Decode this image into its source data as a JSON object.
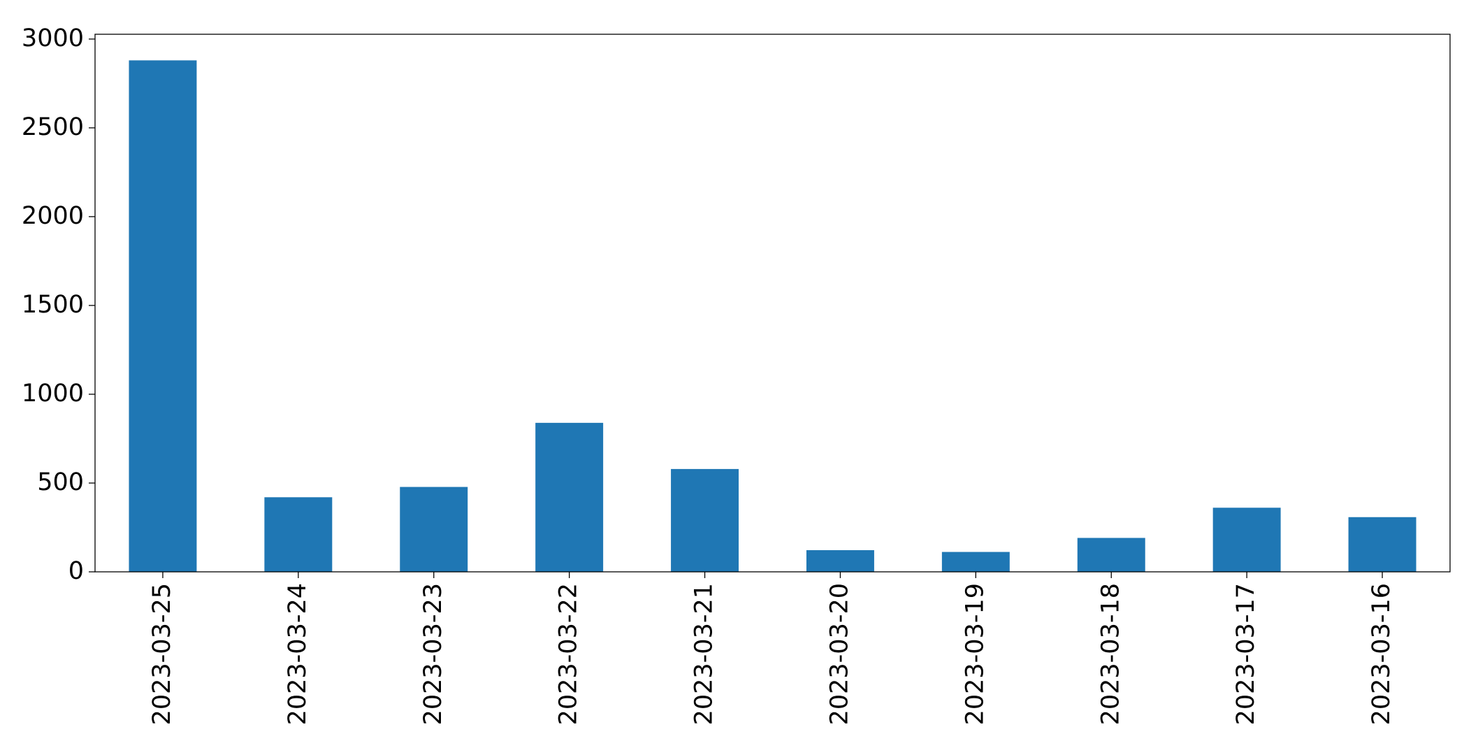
{
  "chart_data": {
    "type": "bar",
    "categories": [
      "2023-03-25",
      "2023-03-24",
      "2023-03-23",
      "2023-03-22",
      "2023-03-21",
      "2023-03-20",
      "2023-03-19",
      "2023-03-18",
      "2023-03-17",
      "2023-03-16"
    ],
    "values": [
      2880,
      420,
      478,
      839,
      579,
      122,
      112,
      191,
      361,
      308
    ],
    "color": "#1f77b4",
    "ylim": [
      0,
      3027
    ],
    "yticks": [
      0,
      500,
      1000,
      1500,
      2000,
      2500,
      3000
    ],
    "grid": false
  }
}
